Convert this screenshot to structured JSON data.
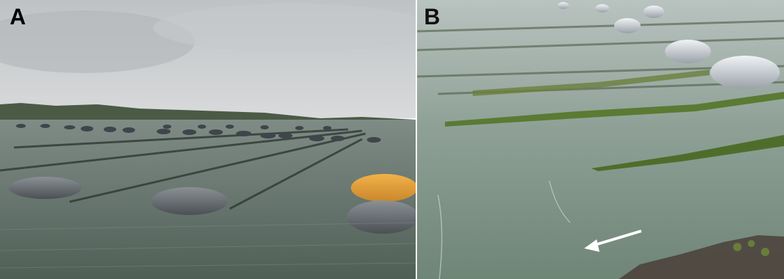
{
  "panels": [
    {
      "label": "A",
      "scene": "oyster-farm-floats-calm-water-overcast"
    },
    {
      "label": "B",
      "scene": "oyster-farm-lines-with-algae-and-arrow"
    }
  ],
  "colors": {
    "sky": "#c9ccce",
    "water_a": "#5d6c64",
    "water_b": "#7f9588",
    "float_grey": "#6c7176",
    "float_orange": "#e8a43a",
    "float_white": "#d9dde2",
    "algae": "#5b7a33",
    "arrow": "#ffffff"
  },
  "icons": [
    "white-arrow-icon"
  ]
}
